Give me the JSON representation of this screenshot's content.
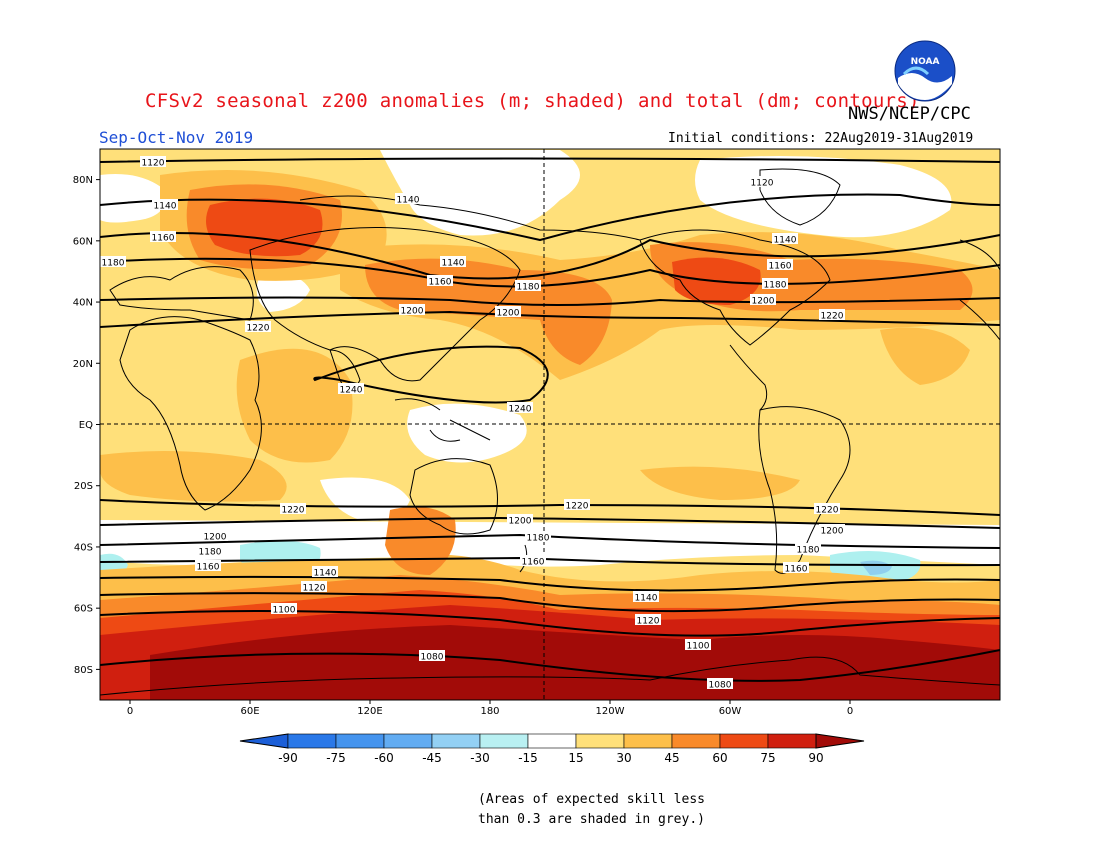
{
  "header": {
    "title": "CFSv2 seasonal z200 anomalies (m; shaded) and total (dm; contours)",
    "agency": "NWS/NCEP/CPC",
    "logo_text": "NOAA",
    "season": "Sep-Oct-Nov 2019",
    "initial_conditions": "Initial conditions: 22Aug2019-31Aug2019"
  },
  "map": {
    "lat_ticks": [
      "80N",
      "60N",
      "40N",
      "20N",
      "EQ",
      "20S",
      "40S",
      "60S",
      "80S"
    ],
    "lon_ticks": [
      "0",
      "60E",
      "120E",
      "180",
      "120W",
      "60W",
      "0"
    ],
    "contours": [
      {
        "label": "1120",
        "lat": 86
      },
      {
        "label": "1140",
        "lat": 72
      },
      {
        "label": "1160",
        "lat": 61
      },
      {
        "label": "1180",
        "lat": 54
      },
      {
        "label": "1200",
        "lat": 41
      },
      {
        "label": "1220",
        "lat": 32
      },
      {
        "label": "1240",
        "lat": 15
      },
      {
        "label": "1220",
        "lat": -27
      },
      {
        "label": "1200",
        "lat": -33
      },
      {
        "label": "1180",
        "lat": -39
      },
      {
        "label": "1160",
        "lat": -44
      },
      {
        "label": "1140",
        "lat": -51
      },
      {
        "label": "1120",
        "lat": -56
      },
      {
        "label": "1100",
        "lat": -62
      },
      {
        "label": "1080",
        "lat": -77
      }
    ],
    "colors": {
      "c_m15_15": "#ffffff",
      "c_15_30": "#ffe07a",
      "c_30_45": "#fdbf4a",
      "c_45_60": "#f98a2a",
      "c_60_75": "#ee4a14",
      "c_75_90": "#d01f0f",
      "c_90p": "#a20b08",
      "n_15_30": "#aef0ef",
      "n_30_45": "#8fcfee"
    }
  },
  "colorbar": {
    "labels": [
      "-90",
      "-75",
      "-60",
      "-45",
      "-30",
      "-15",
      "15",
      "30",
      "45",
      "60",
      "75",
      "90"
    ],
    "colors": [
      "#1c5fd8",
      "#2a78e8",
      "#4594ee",
      "#62acf2",
      "#93d0f4",
      "#b9f0f2",
      "#ffffff",
      "#ffe07a",
      "#fdbf4a",
      "#f98a2a",
      "#ee4a14",
      "#d01f0f",
      "#a20b08"
    ]
  },
  "note": {
    "line1": "(Areas of expected skill less",
    "line2": "than 0.3 are shaded in grey.)"
  }
}
